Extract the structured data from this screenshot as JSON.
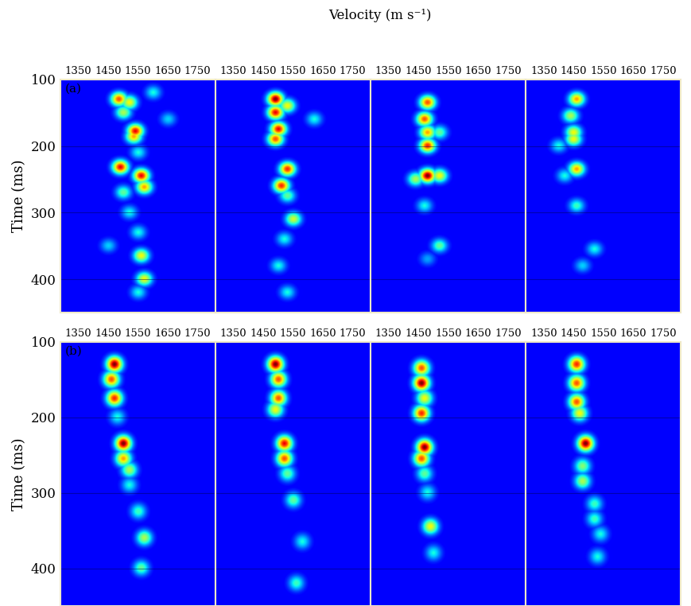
{
  "chart_data": {
    "type": "heatmap",
    "x_label": "Velocity (m s⁻¹)",
    "y_label": "Time (ms)",
    "xlim": [
      1290,
      1810
    ],
    "ylim": [
      450,
      100
    ],
    "xticks": [
      1350,
      1450,
      1550,
      1650,
      1750
    ],
    "yticks": [
      100,
      200,
      300,
      400
    ],
    "grid": true,
    "color_range": [
      0,
      1
    ],
    "rows": [
      {
        "label": "(a)",
        "panels": [
          {
            "peaks": [
              [
                130,
                1485,
                0.8
              ],
              [
                135,
                1520,
                0.6
              ],
              [
                150,
                1500,
                0.5
              ],
              [
                120,
                1600,
                0.3
              ],
              [
                160,
                1650,
                0.25
              ],
              [
                178,
                1540,
                0.9
              ],
              [
                186,
                1535,
                0.7
              ],
              [
                210,
                1550,
                0.3
              ],
              [
                232,
                1490,
                0.9
              ],
              [
                245,
                1560,
                0.9
              ],
              [
                262,
                1570,
                0.7
              ],
              [
                270,
                1500,
                0.4
              ],
              [
                300,
                1520,
                0.3
              ],
              [
                330,
                1550,
                0.3
              ],
              [
                350,
                1450,
                0.25
              ],
              [
                365,
                1560,
                0.6
              ],
              [
                400,
                1570,
                0.6
              ],
              [
                420,
                1550,
                0.3
              ]
            ]
          },
          {
            "peaks": [
              [
                130,
                1490,
                1.0
              ],
              [
                150,
                1490,
                0.9
              ],
              [
                140,
                1530,
                0.6
              ],
              [
                160,
                1620,
                0.3
              ],
              [
                175,
                1500,
                0.9
              ],
              [
                190,
                1490,
                0.8
              ],
              [
                235,
                1530,
                0.85
              ],
              [
                260,
                1510,
                0.85
              ],
              [
                275,
                1530,
                0.4
              ],
              [
                310,
                1550,
                0.55
              ],
              [
                340,
                1520,
                0.3
              ],
              [
                380,
                1500,
                0.3
              ],
              [
                420,
                1530,
                0.3
              ]
            ]
          },
          {
            "peaks": [
              [
                135,
                1480,
                0.8
              ],
              [
                160,
                1470,
                0.8
              ],
              [
                180,
                1480,
                0.7
              ],
              [
                180,
                1520,
                0.4
              ],
              [
                200,
                1480,
                0.85
              ],
              [
                245,
                1480,
                1.0
              ],
              [
                245,
                1520,
                0.6
              ],
              [
                250,
                1440,
                0.5
              ],
              [
                290,
                1470,
                0.3
              ],
              [
                350,
                1520,
                0.4
              ],
              [
                370,
                1480,
                0.2
              ]
            ]
          },
          {
            "peaks": [
              [
                130,
                1460,
                0.7
              ],
              [
                155,
                1440,
                0.5
              ],
              [
                180,
                1450,
                0.6
              ],
              [
                190,
                1450,
                0.6
              ],
              [
                200,
                1400,
                0.3
              ],
              [
                235,
                1460,
                0.7
              ],
              [
                245,
                1420,
                0.3
              ],
              [
                290,
                1460,
                0.35
              ],
              [
                355,
                1520,
                0.3
              ],
              [
                380,
                1480,
                0.25
              ]
            ]
          }
        ]
      },
      {
        "label": "(b)",
        "panels": [
          {
            "peaks": [
              [
                130,
                1470,
                1.0
              ],
              [
                150,
                1460,
                0.8
              ],
              [
                175,
                1470,
                0.85
              ],
              [
                200,
                1480,
                0.3
              ],
              [
                235,
                1500,
                1.0
              ],
              [
                255,
                1500,
                0.7
              ],
              [
                270,
                1520,
                0.5
              ],
              [
                290,
                1520,
                0.3
              ],
              [
                325,
                1550,
                0.35
              ],
              [
                360,
                1570,
                0.5
              ],
              [
                400,
                1560,
                0.4
              ]
            ]
          },
          {
            "peaks": [
              [
                130,
                1490,
                1.0
              ],
              [
                150,
                1500,
                0.8
              ],
              [
                175,
                1500,
                0.8
              ],
              [
                190,
                1490,
                0.6
              ],
              [
                235,
                1520,
                0.9
              ],
              [
                255,
                1520,
                0.8
              ],
              [
                275,
                1530,
                0.4
              ],
              [
                310,
                1550,
                0.4
              ],
              [
                365,
                1580,
                0.3
              ],
              [
                420,
                1560,
                0.35
              ]
            ]
          },
          {
            "peaks": [
              [
                135,
                1460,
                0.8
              ],
              [
                155,
                1460,
                1.0
              ],
              [
                175,
                1470,
                0.6
              ],
              [
                195,
                1460,
                0.85
              ],
              [
                240,
                1470,
                1.0
              ],
              [
                255,
                1460,
                0.8
              ],
              [
                275,
                1470,
                0.4
              ],
              [
                300,
                1480,
                0.3
              ],
              [
                345,
                1490,
                0.6
              ],
              [
                380,
                1500,
                0.3
              ]
            ]
          },
          {
            "peaks": [
              [
                130,
                1460,
                0.85
              ],
              [
                155,
                1460,
                0.8
              ],
              [
                180,
                1460,
                0.8
              ],
              [
                195,
                1470,
                0.6
              ],
              [
                235,
                1490,
                1.0
              ],
              [
                265,
                1480,
                0.45
              ],
              [
                285,
                1480,
                0.5
              ],
              [
                315,
                1520,
                0.35
              ],
              [
                335,
                1520,
                0.35
              ],
              [
                355,
                1540,
                0.3
              ],
              [
                385,
                1530,
                0.3
              ]
            ]
          }
        ]
      }
    ]
  }
}
